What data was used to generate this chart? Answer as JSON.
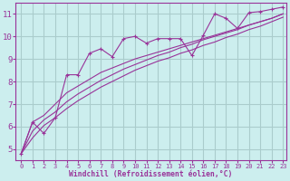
{
  "xlabel": "Windchill (Refroidissement éolien,°C)",
  "bg_color": "#cceeee",
  "grid_color": "#aacccc",
  "line_color": "#993399",
  "xlim": [
    -0.5,
    23.3
  ],
  "ylim": [
    4.5,
    11.5
  ],
  "xticks": [
    0,
    1,
    2,
    3,
    4,
    5,
    6,
    7,
    8,
    9,
    10,
    11,
    12,
    13,
    14,
    15,
    16,
    17,
    18,
    19,
    20,
    21,
    22,
    23
  ],
  "yticks": [
    5,
    6,
    7,
    8,
    9,
    10,
    11
  ],
  "lines": [
    [
      4.8,
      6.2,
      5.7,
      6.4,
      8.3,
      8.3,
      9.25,
      9.45,
      9.1,
      9.9,
      10.0,
      9.7,
      9.9,
      9.9,
      9.9,
      9.15,
      10.05,
      11.0,
      10.8,
      10.35,
      11.05,
      11.1,
      11.2,
      11.3
    ],
    [
      4.8,
      6.2,
      6.5,
      7.0,
      7.5,
      7.8,
      8.1,
      8.4,
      8.6,
      8.8,
      9.0,
      9.15,
      9.3,
      9.45,
      9.6,
      9.75,
      9.9,
      10.05,
      10.2,
      10.35,
      10.5,
      10.65,
      10.8,
      11.0
    ],
    [
      4.8,
      5.8,
      6.3,
      6.65,
      7.1,
      7.45,
      7.75,
      8.05,
      8.3,
      8.55,
      8.75,
      8.95,
      9.15,
      9.3,
      9.5,
      9.65,
      9.85,
      10.0,
      10.15,
      10.3,
      10.5,
      10.65,
      10.8,
      11.0
    ],
    [
      4.8,
      5.5,
      6.05,
      6.4,
      6.8,
      7.15,
      7.45,
      7.75,
      8.0,
      8.25,
      8.5,
      8.7,
      8.9,
      9.05,
      9.25,
      9.4,
      9.6,
      9.75,
      9.95,
      10.1,
      10.3,
      10.45,
      10.65,
      10.85
    ]
  ],
  "markers": [
    true,
    false,
    false,
    false
  ],
  "xlabel_fontsize": 5.8,
  "xlabel_fontweight": "bold",
  "ytick_fontsize": 6.5,
  "xtick_fontsize": 5.0
}
